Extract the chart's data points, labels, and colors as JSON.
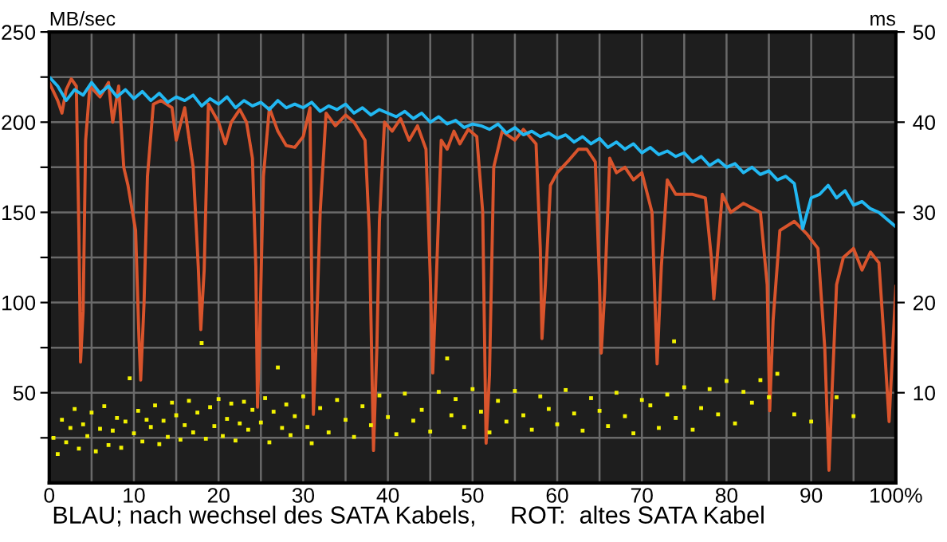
{
  "chart_data": {
    "type": "line",
    "ylabel": "MB/sec",
    "y2label": "ms",
    "annotations": [
      "BLAU; nach wechsel des SATA Kabels,     ROT:  altes SATA Kabel"
    ],
    "xlim": [
      0,
      100
    ],
    "xticks": [
      0,
      {
        "value": 5,
        "label": null
      },
      10,
      {
        "value": 15,
        "label": null
      },
      20,
      {
        "value": 25,
        "label": null
      },
      30,
      {
        "value": 35,
        "label": null
      },
      40,
      {
        "value": 45,
        "label": null
      },
      50,
      {
        "value": 55,
        "label": null
      },
      60,
      {
        "value": 65,
        "label": null
      },
      70,
      {
        "value": 75,
        "label": null
      },
      80,
      {
        "value": 85,
        "label": null
      },
      90,
      {
        "value": 95,
        "label": null
      },
      {
        "value": 100,
        "label": "100%"
      }
    ],
    "ylim": [
      0,
      250
    ],
    "yticks": [
      {
        "value": 25,
        "label": null
      },
      50,
      {
        "value": 75,
        "label": null
      },
      100,
      {
        "value": 125,
        "label": null
      },
      150,
      {
        "value": 175,
        "label": null
      },
      200,
      {
        "value": 225,
        "label": null
      },
      250
    ],
    "y2lim": [
      0,
      50
    ],
    "y2ticks": [
      10,
      20,
      30,
      40,
      50
    ],
    "grid": true,
    "series": [
      {
        "color": "#d9542c",
        "x": [
          0,
          1,
          1.5,
          2,
          2.6,
          3.2,
          3.5,
          3.7,
          4.0,
          4.3,
          4.8,
          6,
          7,
          7.5,
          8.2,
          8.8,
          9.3,
          10.2,
          10.6,
          10.8,
          11.2,
          11.6,
          12.3,
          13.2,
          14.5,
          15,
          16,
          17,
          17.6,
          17.9,
          18.3,
          18.8,
          20,
          20.8,
          21.5,
          22.5,
          23.3,
          24,
          24.4,
          24.6,
          24.9,
          25.3,
          26,
          27,
          28,
          29,
          30,
          30.8,
          31.0,
          31.2,
          31.5,
          32,
          32.7,
          33.8,
          35,
          36,
          37.3,
          37.8,
          38.3,
          38.7,
          39,
          39.6,
          40.5,
          41.5,
          42.5,
          43.5,
          44.5,
          45,
          45.3,
          45.7,
          46.3,
          47,
          47.8,
          48.5,
          49.5,
          50.5,
          51.2,
          51.6,
          52,
          52.5,
          53.5,
          55,
          56,
          57.5,
          58,
          58.2,
          58.6,
          59.2,
          60,
          61.4,
          62.5,
          63.5,
          64.5,
          65,
          65.2,
          65.6,
          66.2,
          67,
          68,
          69,
          70,
          71.2,
          71.8,
          72.3,
          73,
          74,
          76,
          77.5,
          78.2,
          78.5,
          78.9,
          79.5,
          80.5,
          82,
          84,
          84.8,
          85.1,
          85.5,
          86.3,
          88,
          89.5,
          90.8,
          91.6,
          92.1,
          92.5,
          93,
          93.8,
          95,
          96,
          97,
          98,
          98.6,
          99.2,
          100
        ],
        "values": [
          222,
          212,
          205,
          218,
          224,
          220,
          140,
          67,
          95,
          190,
          220,
          214,
          222,
          200,
          220,
          175,
          165,
          140,
          80,
          57,
          100,
          170,
          210,
          212,
          208,
          190,
          208,
          175,
          120,
          85,
          118,
          210,
          200,
          188,
          200,
          207,
          200,
          180,
          120,
          42,
          90,
          170,
          208,
          195,
          187,
          186,
          192,
          208,
          110,
          38,
          75,
          150,
          205,
          198,
          204,
          200,
          190,
          140,
          18,
          75,
          145,
          200,
          195,
          202,
          190,
          198,
          185,
          115,
          61,
          110,
          190,
          185,
          195,
          188,
          196,
          192,
          150,
          22,
          60,
          175,
          195,
          190,
          196,
          188,
          130,
          80,
          110,
          165,
          172,
          179,
          185,
          185,
          178,
          110,
          72,
          105,
          180,
          172,
          175,
          168,
          172,
          150,
          66,
          120,
          168,
          160,
          160,
          158,
          125,
          102,
          125,
          160,
          150,
          155,
          150,
          110,
          40,
          90,
          140,
          145,
          138,
          130,
          75,
          7,
          55,
          110,
          125,
          130,
          118,
          128,
          122,
          80,
          34,
          109
        ]
      },
      {
        "color": "#22b8f2",
        "x": [
          0,
          1,
          2,
          3,
          4,
          5,
          6,
          7,
          8,
          9,
          10,
          11,
          12,
          13,
          14,
          15,
          16,
          17,
          18,
          19,
          20,
          21,
          22,
          23,
          24,
          25,
          26,
          27,
          28,
          29,
          30,
          31,
          32,
          33,
          34,
          35,
          36,
          37,
          38,
          39,
          40,
          41,
          42,
          43,
          44,
          45,
          46,
          47,
          48,
          49,
          50,
          51,
          52,
          53,
          54,
          55,
          56,
          57,
          58,
          59,
          60,
          61,
          62,
          63,
          64,
          65,
          66,
          67,
          68,
          69,
          70,
          71,
          72,
          73,
          74,
          75,
          76,
          77,
          78,
          79,
          80,
          81,
          82,
          83,
          84,
          85,
          86,
          87,
          88,
          89,
          90,
          91,
          92,
          93,
          94,
          95,
          96,
          97,
          98,
          99,
          100
        ],
        "values": [
          225,
          220,
          212,
          218,
          215,
          222,
          216,
          220,
          214,
          218,
          213,
          217,
          212,
          216,
          211,
          214,
          212,
          215,
          209,
          213,
          210,
          214,
          208,
          212,
          209,
          211,
          207,
          212,
          208,
          210,
          208,
          211,
          206,
          209,
          207,
          210,
          205,
          208,
          204,
          207,
          205,
          203,
          206,
          202,
          205,
          200,
          203,
          199,
          201,
          197,
          199,
          198,
          196,
          199,
          194,
          197,
          193,
          195,
          192,
          194,
          191,
          193,
          189,
          192,
          188,
          191,
          186,
          189,
          185,
          188,
          183,
          186,
          182,
          184,
          181,
          183,
          178,
          181,
          176,
          179,
          175,
          177,
          172,
          175,
          171,
          173,
          168,
          170,
          166,
          141,
          158,
          160,
          165,
          158,
          162,
          154,
          156,
          152,
          150,
          146,
          142
        ]
      },
      {
        "type": "scatter",
        "axis": "y2",
        "color": "#f2f200",
        "marker": "square",
        "x": [
          0.5,
          1,
          1.5,
          2,
          2.5,
          3,
          3.5,
          4,
          4.5,
          5,
          5.5,
          6,
          6.5,
          7,
          7.5,
          8,
          8.5,
          9,
          9.5,
          10,
          10.5,
          11,
          11.5,
          12,
          12.5,
          13,
          13.5,
          14,
          14.5,
          15,
          15.5,
          16,
          16.5,
          17,
          17.5,
          18,
          18.5,
          19,
          19.5,
          20,
          20.5,
          21,
          21.5,
          22,
          22.5,
          23,
          23.5,
          24,
          25,
          25.5,
          26,
          26.5,
          27,
          27.5,
          28,
          28.5,
          29,
          30,
          30.5,
          31,
          32,
          33,
          34,
          35,
          36,
          37,
          38,
          39,
          40,
          41,
          42,
          43,
          44,
          45,
          46,
          47,
          47.5,
          48,
          49,
          50,
          51,
          52,
          53,
          54,
          55,
          56,
          57,
          58,
          59,
          60,
          61,
          62,
          63,
          64,
          65,
          66,
          67,
          68,
          69,
          70,
          71,
          72,
          73,
          73.8,
          74,
          75,
          76,
          77,
          78,
          79,
          80,
          81,
          82,
          83,
          84,
          85,
          86,
          88,
          90,
          93,
          95
        ],
        "values": [
          5,
          3.2,
          7,
          4.5,
          6.1,
          8.2,
          3.8,
          6.5,
          5.2,
          7.8,
          3.5,
          6,
          8.5,
          4.2,
          5.8,
          7.2,
          3.9,
          6.8,
          11.6,
          5.5,
          8,
          4.6,
          7,
          6.2,
          8.6,
          4.3,
          6.9,
          5.1,
          8.9,
          7.5,
          4.8,
          6.4,
          9.1,
          5.6,
          7.8,
          15.5,
          4.9,
          8.4,
          6.3,
          9.3,
          5.2,
          7.1,
          8.8,
          4.7,
          6.6,
          9,
          5.9,
          8.1,
          6.7,
          9.4,
          4.5,
          7.9,
          12.8,
          6.1,
          8.7,
          5.3,
          7.4,
          9.6,
          6.2,
          4.4,
          8.3,
          5.6,
          9.2,
          7,
          5.1,
          8.5,
          6.4,
          9.7,
          7.3,
          5.4,
          9.9,
          6.9,
          8.1,
          5.7,
          10.1,
          13.8,
          7.5,
          9.3,
          6.2,
          10.4,
          7.9,
          5.6,
          9.1,
          6.8,
          10.2,
          7.5,
          5.9,
          9.6,
          8.2,
          6.5,
          10.3,
          7.7,
          5.8,
          9.4,
          8,
          6.3,
          10,
          7.4,
          5.5,
          9.2,
          8.6,
          6.1,
          9.8,
          15.7,
          7.2,
          10.6,
          5.9,
          8.3,
          10.4,
          7.6,
          11.3,
          6.6,
          10.1,
          8.9,
          11.4,
          9.5,
          12.1,
          7.6,
          6.8,
          9.5,
          7.4
        ]
      }
    ]
  }
}
